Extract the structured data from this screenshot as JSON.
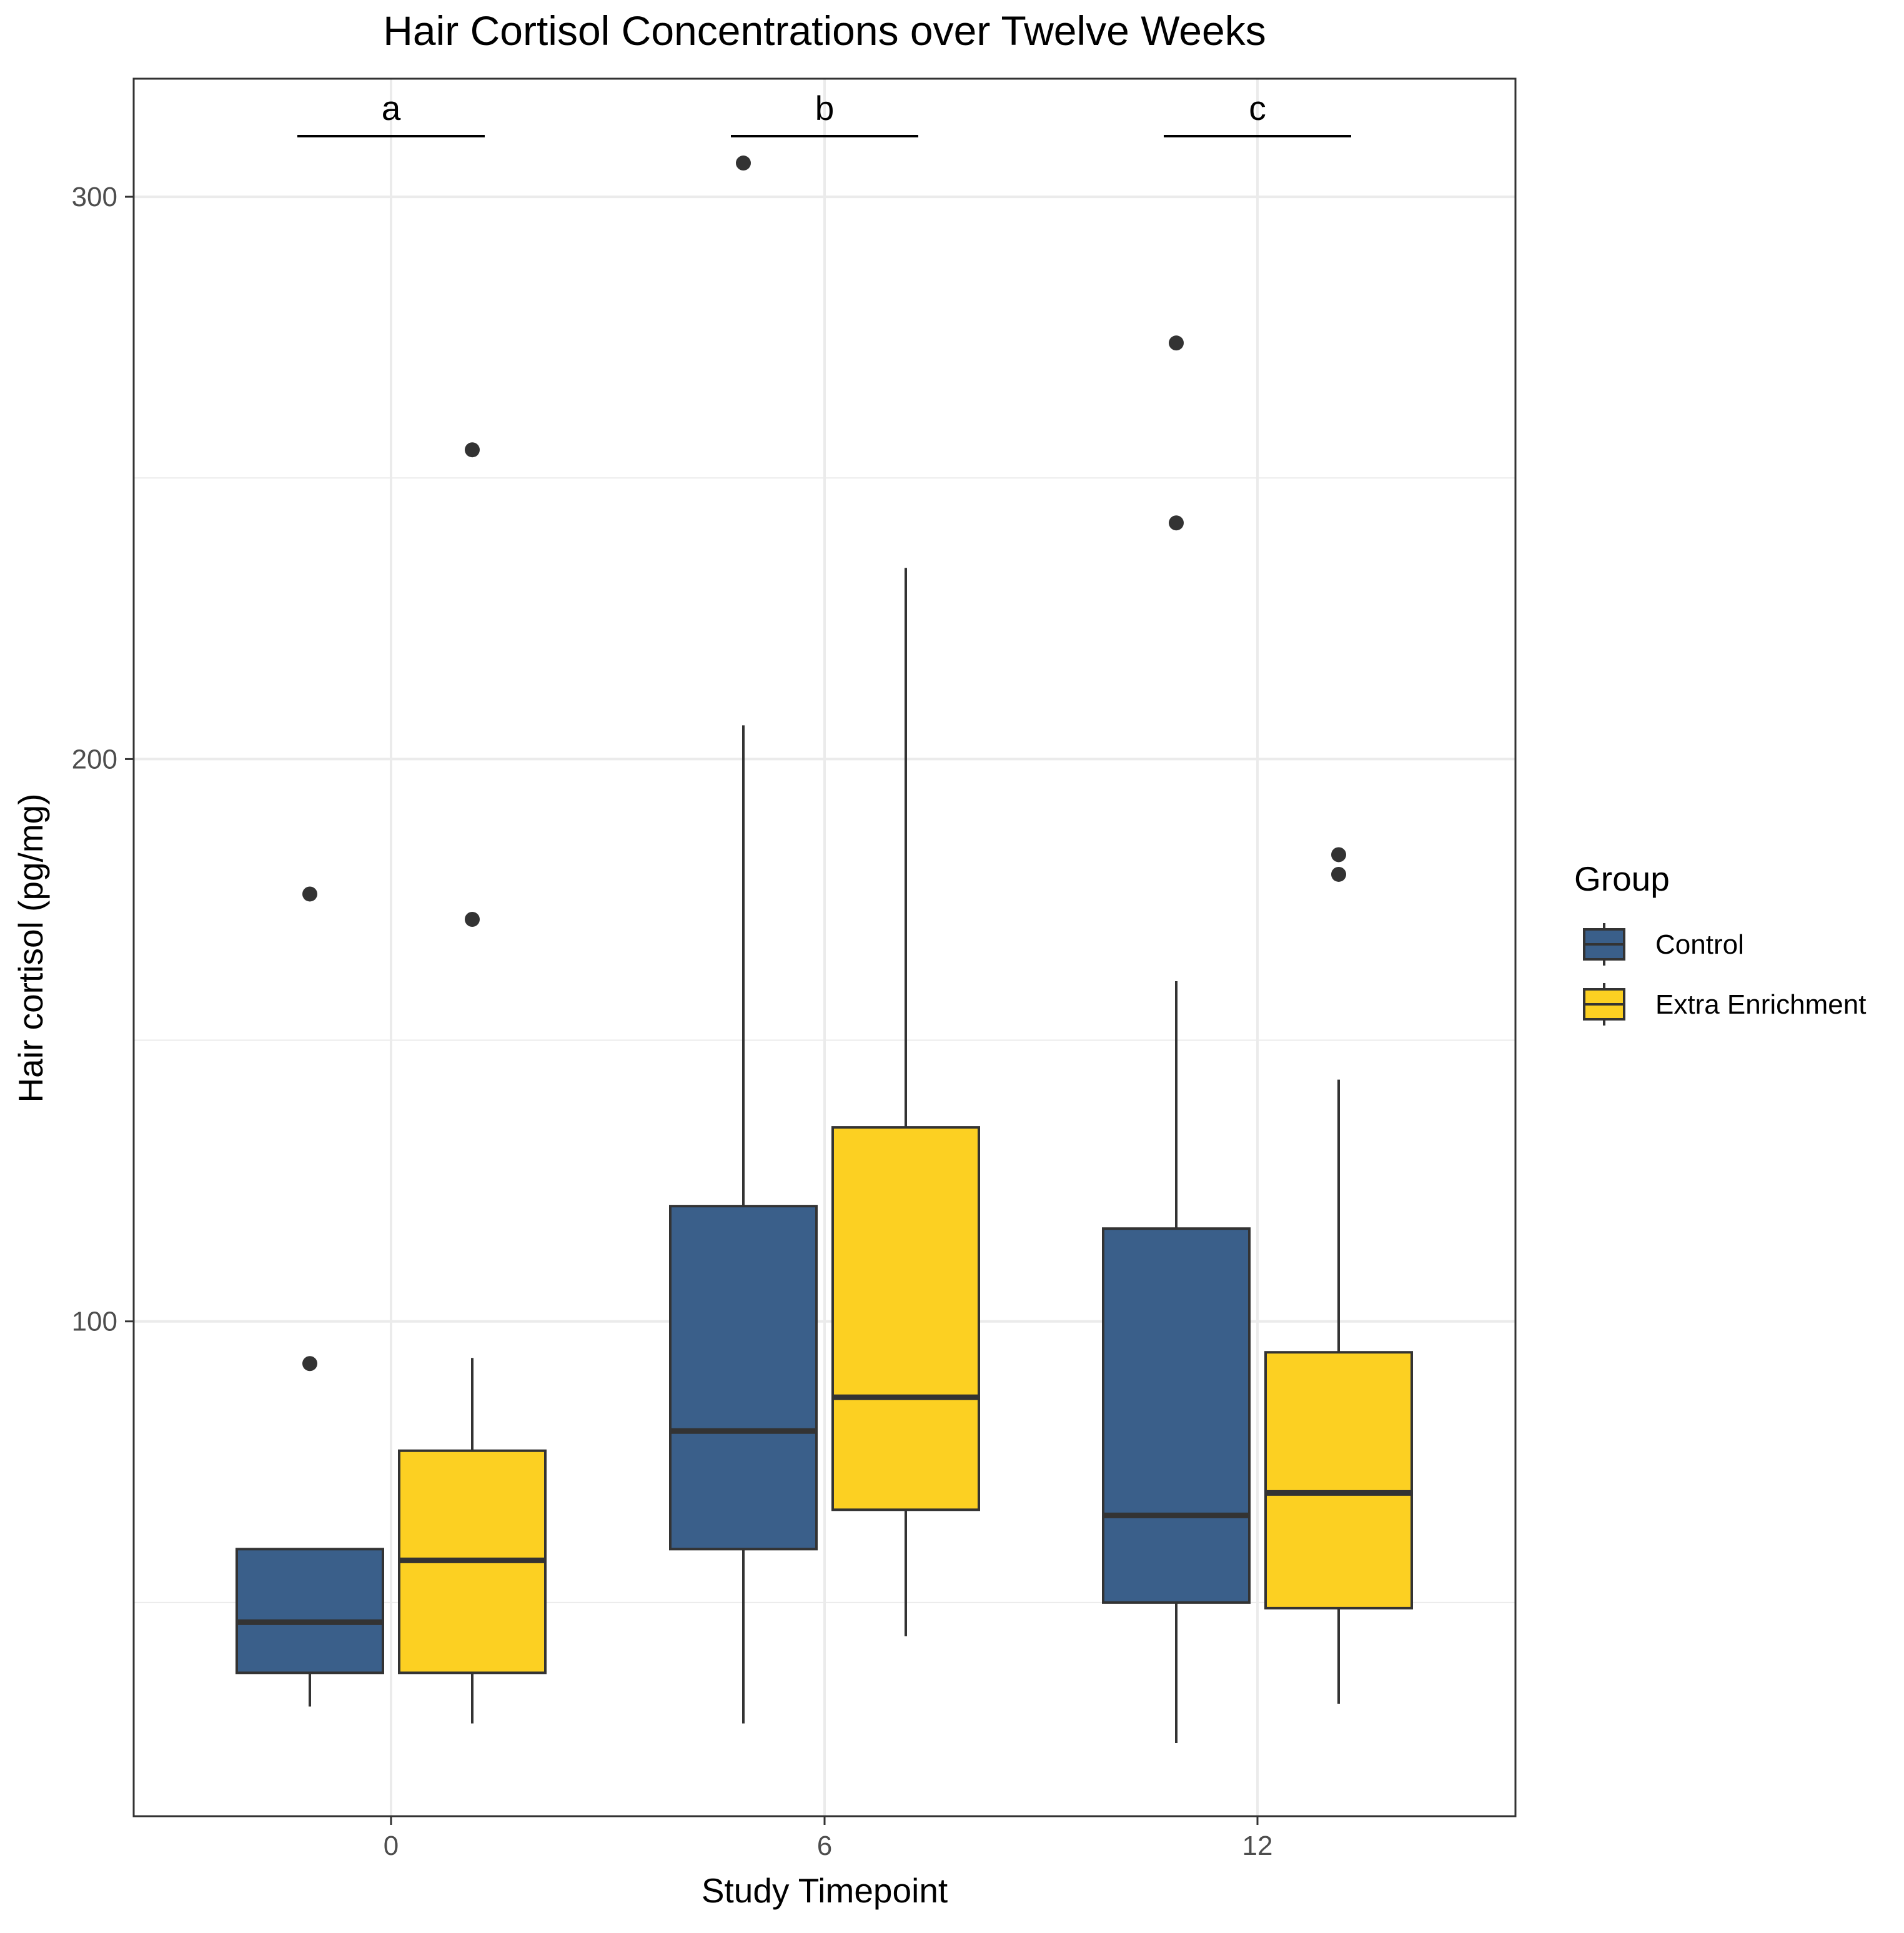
{
  "chart_data": {
    "type": "boxplot",
    "title": "Hair Cortisol Concentrations over Twelve Weeks",
    "xlabel": "Study Timepoint",
    "ylabel": "Hair cortisol (pg/mg)",
    "categories": [
      "0",
      "6",
      "12"
    ],
    "ylim": [
      12,
      321
    ],
    "y_ticks": [
      100,
      200,
      300
    ],
    "y_tick_labels": [
      "100",
      "200",
      "300"
    ],
    "y_minor_gridlines": [
      50,
      150,
      250
    ],
    "grid": true,
    "legend": {
      "title": "Group",
      "position": "right",
      "entries": [
        "Control",
        "Extra Enrichment"
      ]
    },
    "colors": {
      "Control": "#3a5f8a",
      "Extra Enrichment": "#fcd022",
      "outline": "#333333",
      "grid": "#ebebeb",
      "panel_border": "#333333"
    },
    "annotations": [
      {
        "category": "0",
        "label": "a"
      },
      {
        "category": "6",
        "label": "b"
      },
      {
        "category": "12",
        "label": "c"
      }
    ],
    "series": [
      {
        "name": "Control",
        "boxes": [
          {
            "category": "0",
            "whisker_low": 31.5,
            "q1": 37.5,
            "median": 46.5,
            "q3": 59.5,
            "whisker_high": 59.5,
            "outliers": [
              92.5,
              176
            ]
          },
          {
            "category": "6",
            "whisker_low": 28.5,
            "q1": 59.5,
            "median": 80.5,
            "q3": 120.5,
            "whisker_high": 206,
            "outliers": [
              306
            ]
          },
          {
            "category": "12",
            "whisker_low": 25,
            "q1": 50,
            "median": 65.5,
            "q3": 116.5,
            "whisker_high": 160.5,
            "outliers": [
              242,
              274
            ]
          }
        ]
      },
      {
        "name": "Extra Enrichment",
        "boxes": [
          {
            "category": "0",
            "whisker_low": 28.5,
            "q1": 37.5,
            "median": 57.5,
            "q3": 77,
            "whisker_high": 93.5,
            "outliers": [
              171.5,
              255
            ]
          },
          {
            "category": "6",
            "whisker_low": 44,
            "q1": 66.5,
            "median": 86.5,
            "q3": 134.5,
            "whisker_high": 234,
            "outliers": []
          },
          {
            "category": "12",
            "whisker_low": 32,
            "q1": 49,
            "median": 69.5,
            "q3": 94.5,
            "whisker_high": 143,
            "outliers": [
              179.5,
              183
            ]
          }
        ]
      }
    ]
  }
}
